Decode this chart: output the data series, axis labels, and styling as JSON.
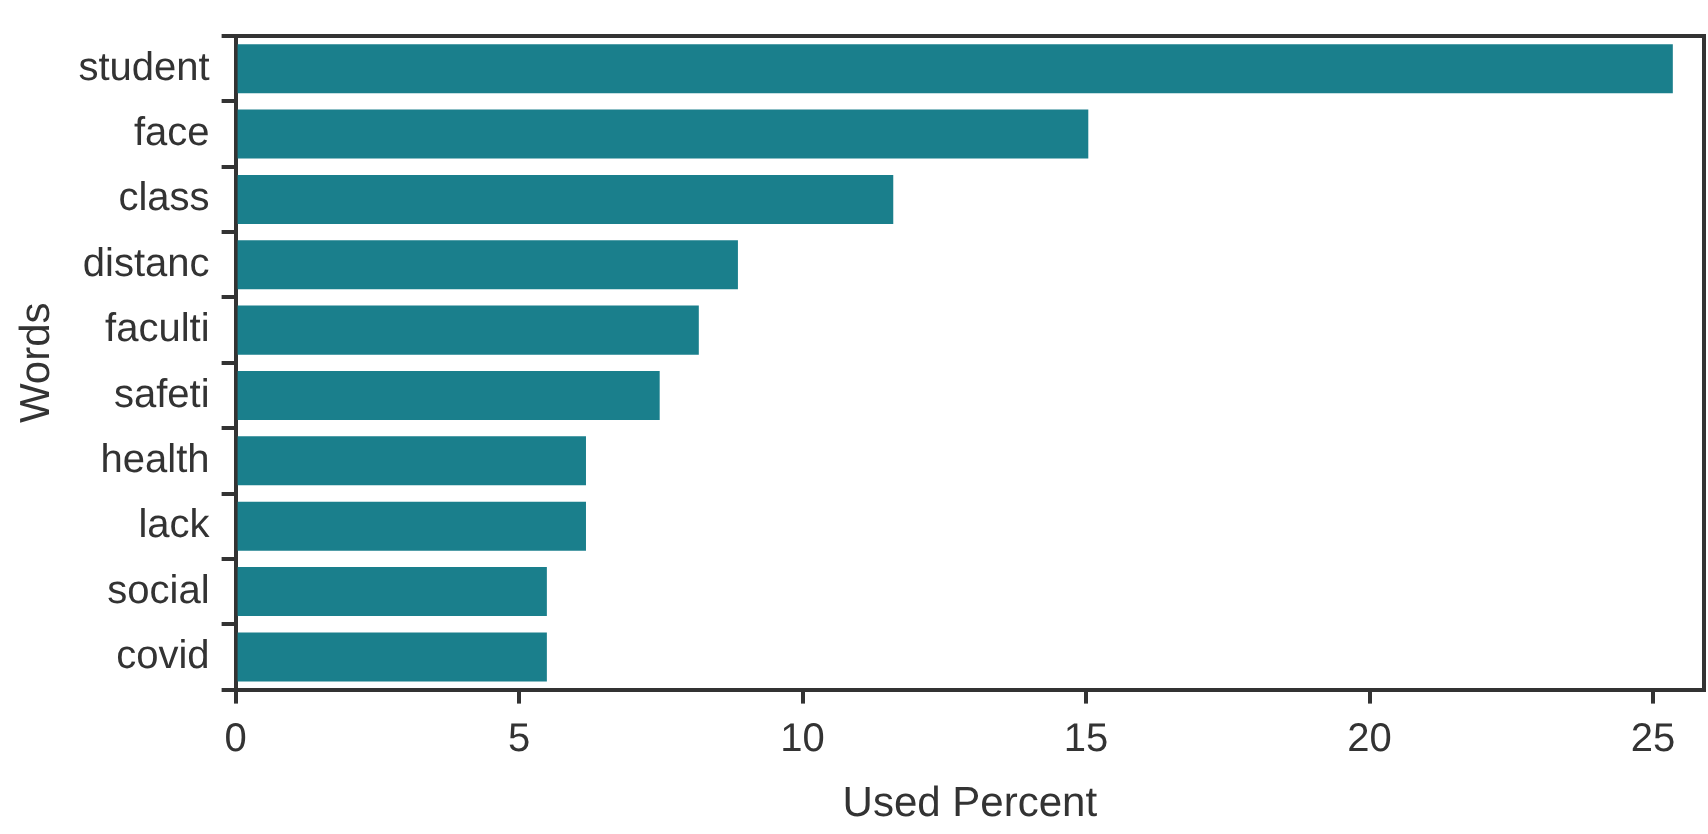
{
  "chart_data": {
    "type": "bar",
    "orientation": "horizontal",
    "xlabel": "Used Percent",
    "ylabel": "Words",
    "categories": [
      "student",
      "face",
      "class",
      "distanc",
      "faculti",
      "safeti",
      "health",
      "lack",
      "social",
      "covid"
    ],
    "values": [
      25.35,
      15.04,
      11.6,
      8.86,
      8.17,
      7.48,
      6.18,
      6.18,
      5.49,
      5.49
    ],
    "color": "#1a7f8c",
    "xlim": [
      0,
      25.9
    ],
    "xticks": [
      0,
      5,
      10,
      15,
      20,
      25
    ],
    "legend": false
  }
}
